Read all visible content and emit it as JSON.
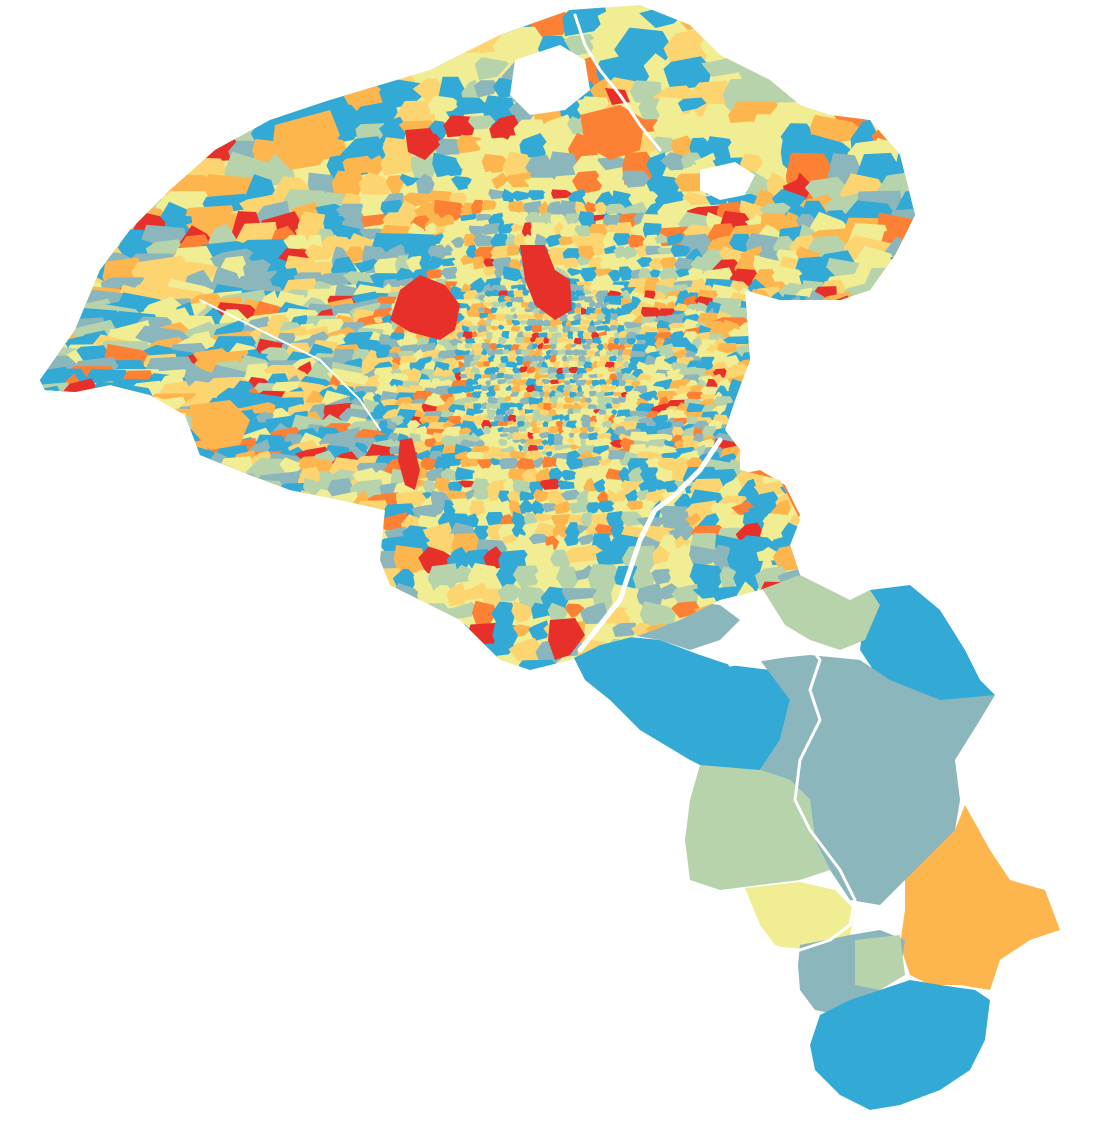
{
  "map": {
    "type": "choropleth",
    "background": "#ffffff",
    "palette": {
      "class_1": "#33a9d6",
      "class_2": "#8bb6bb",
      "class_3": "#b6d3ab",
      "class_4": "#f0ed93",
      "class_5": "#fcd571",
      "class_6": "#fdb64e",
      "class_7": "#fc8135",
      "class_8": "#e8302b"
    },
    "legend": null,
    "title": null
  }
}
